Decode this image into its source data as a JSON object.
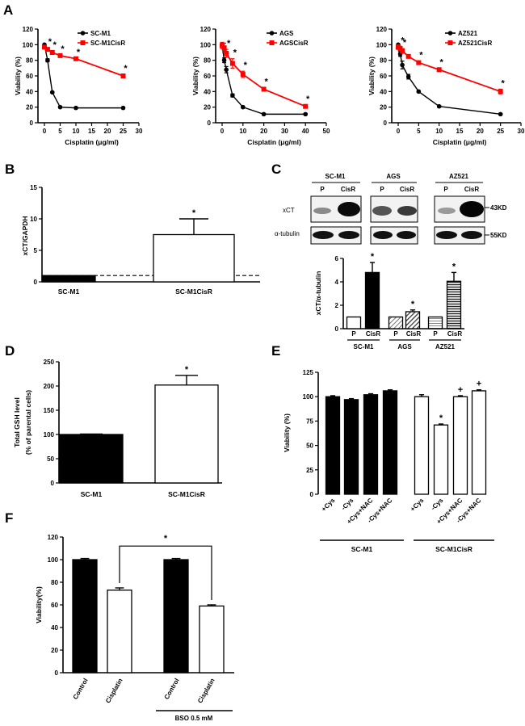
{
  "chart_data": [
    {
      "panel": "A",
      "type": "line",
      "xlabel": "Cisplatin (μg/ml)",
      "ylabel": "Viability (%)",
      "xlim": [
        0,
        30
      ],
      "ylim": [
        0,
        120
      ],
      "xticks": [
        0,
        5,
        10,
        15,
        20,
        25,
        30
      ],
      "yticks": [
        0,
        20,
        40,
        60,
        80,
        100,
        120
      ],
      "series": [
        {
          "name": "SC-M1",
          "color": "#000000",
          "x": [
            0,
            1,
            2.5,
            5,
            10,
            25
          ],
          "y": [
            100,
            80,
            39,
            20,
            19,
            19
          ],
          "err": [
            0,
            2,
            1,
            1,
            1,
            1
          ]
        },
        {
          "name": "SC-M1CisR",
          "color": "#ff0000",
          "x": [
            0,
            1,
            2.5,
            5,
            10,
            25
          ],
          "y": [
            97,
            94,
            90,
            86,
            82,
            60
          ],
          "err": [
            2,
            2,
            2,
            1,
            1,
            2
          ]
        }
      ],
      "star_x": [
        1,
        2.5,
        5,
        10,
        25
      ]
    },
    {
      "panel": "A",
      "type": "line",
      "xlabel": "Cisplatin (μg/ml)",
      "ylabel": "Viability (%)",
      "xlim": [
        0,
        50
      ],
      "ylim": [
        0,
        120
      ],
      "xticks": [
        0,
        10,
        20,
        30,
        40,
        50
      ],
      "yticks": [
        0,
        20,
        40,
        60,
        80,
        100,
        120
      ],
      "series": [
        {
          "name": "AGS",
          "color": "#000000",
          "x": [
            0,
            1,
            2,
            5,
            10,
            20,
            40
          ],
          "y": [
            100,
            80,
            68,
            35,
            20,
            11,
            11
          ],
          "err": [
            1,
            3,
            4,
            2,
            1,
            1,
            1
          ]
        },
        {
          "name": "AGSCisR",
          "color": "#ff0000",
          "x": [
            0,
            1,
            2,
            5,
            10,
            20,
            40
          ],
          "y": [
            99,
            96,
            89,
            76,
            62,
            43,
            21
          ],
          "err": [
            4,
            6,
            5,
            6,
            4,
            2,
            2
          ]
        }
      ],
      "star_x": [
        2,
        5,
        10,
        20,
        40
      ]
    },
    {
      "panel": "A",
      "type": "line",
      "xlabel": "Cisplatin (μg/ml)",
      "ylabel": "Viability (%)",
      "xlim": [
        0,
        30
      ],
      "ylim": [
        0,
        120
      ],
      "xticks": [
        0,
        5,
        10,
        15,
        20,
        25,
        30
      ],
      "yticks": [
        0,
        20,
        40,
        60,
        80,
        100,
        120
      ],
      "series": [
        {
          "name": "AZ521",
          "color": "#000000",
          "x": [
            0,
            0.5,
            1,
            2.5,
            5,
            10,
            25
          ],
          "y": [
            100,
            88,
            74,
            59,
            40,
            21,
            11
          ],
          "err": [
            1,
            3,
            5,
            3,
            1,
            1,
            1
          ]
        },
        {
          "name": "AZ521CisR",
          "color": "#ff0000",
          "x": [
            0,
            0.5,
            1,
            2.5,
            5,
            10,
            25
          ],
          "y": [
            97,
            95,
            92,
            85,
            77,
            68,
            40
          ],
          "err": [
            3,
            3,
            3,
            2,
            2,
            2,
            3
          ]
        }
      ],
      "star_x": [
        0.5,
        1,
        5,
        10,
        25
      ]
    },
    {
      "panel": "B",
      "type": "bar",
      "ylabel": "xCT/GAPDH",
      "ylim": [
        0,
        15
      ],
      "yticks": [
        0,
        5,
        10,
        15
      ],
      "categories": [
        "SC-M1",
        "SC-M1CisR"
      ],
      "values": [
        1,
        7.5
      ],
      "err": [
        0,
        2.5
      ],
      "fills": [
        "#000000",
        "#ffffff"
      ],
      "reference_line": 1,
      "stars": [
        "",
        "*"
      ]
    },
    {
      "panel": "C",
      "type": "bar",
      "ylabel": "xCT/α-tubulin",
      "ylim": [
        0,
        6
      ],
      "yticks": [
        0,
        2,
        4,
        6
      ],
      "categories": [
        "P",
        "CisR",
        "P",
        "CisR",
        "P",
        "CisR"
      ],
      "groups": [
        "SC-M1",
        "AGS",
        "AZ521"
      ],
      "values": [
        1,
        4.8,
        1,
        1.45,
        1,
        4.05
      ],
      "err": [
        0,
        0.85,
        0,
        0.15,
        0,
        0.75
      ],
      "fills": [
        "#ffffff",
        "#000000",
        "hatch-light",
        "hatch-dark",
        "stripe-light",
        "stripe-dark"
      ],
      "stars": [
        "",
        "*",
        "",
        "*",
        "",
        "*"
      ]
    },
    {
      "panel": "D",
      "type": "bar",
      "ylabel": "Total GSH level (% of parental cells)",
      "ylabel_lines": [
        "Total GSH level",
        "(% of parental cells)"
      ],
      "ylim": [
        0,
        250
      ],
      "yticks": [
        0,
        50,
        100,
        150,
        200,
        250
      ],
      "categories": [
        "SC-M1",
        "SC-M1CisR"
      ],
      "values": [
        100,
        202
      ],
      "err": [
        1,
        20
      ],
      "fills": [
        "#000000",
        "#ffffff"
      ],
      "stars": [
        "",
        "*"
      ]
    },
    {
      "panel": "E",
      "type": "bar",
      "ylabel": "Viability (%)",
      "ylim": [
        0,
        125
      ],
      "yticks": [
        0,
        25,
        50,
        75,
        100,
        125
      ],
      "categories": [
        "+Cys",
        "-Cys",
        "+Cys+NAC",
        "-Cys+NAC",
        "+Cys",
        "-Cys",
        "+Cys+NAC",
        "-Cys+NAC"
      ],
      "groups": [
        "SC-M1",
        "SC-M1CisR"
      ],
      "values": [
        100,
        97,
        102,
        106,
        100,
        71,
        100,
        106
      ],
      "err": [
        1,
        1,
        1,
        1,
        2,
        1,
        1,
        1
      ],
      "fills": [
        "#000000",
        "#000000",
        "#000000",
        "#000000",
        "#ffffff",
        "#ffffff",
        "#ffffff",
        "#ffffff"
      ],
      "marks": [
        "",
        "",
        "",
        "",
        "",
        "*",
        "+",
        "+"
      ]
    },
    {
      "panel": "F",
      "type": "bar",
      "ylabel": "Viability(%)",
      "ylim": [
        0,
        120
      ],
      "yticks": [
        0,
        20,
        40,
        60,
        80,
        100,
        120
      ],
      "categories": [
        "Control",
        "Cisplatin",
        "Control",
        "Cisplatin"
      ],
      "group_label": "BSO 0.5 mM",
      "values": [
        100,
        73,
        100,
        59
      ],
      "err": [
        1,
        2,
        1,
        1
      ],
      "fills": [
        "#000000",
        "#ffffff",
        "#000000",
        "#ffffff"
      ],
      "significance": "*"
    }
  ],
  "panel_letters": [
    "A",
    "B",
    "C",
    "D",
    "E",
    "F"
  ],
  "blot": {
    "groups": [
      "SC-M1",
      "AGS",
      "AZ521"
    ],
    "lanes": [
      "P",
      "CisR"
    ],
    "rows": [
      "xCT",
      "α-tubulin"
    ],
    "sizes": [
      "43KD",
      "55KD"
    ]
  }
}
